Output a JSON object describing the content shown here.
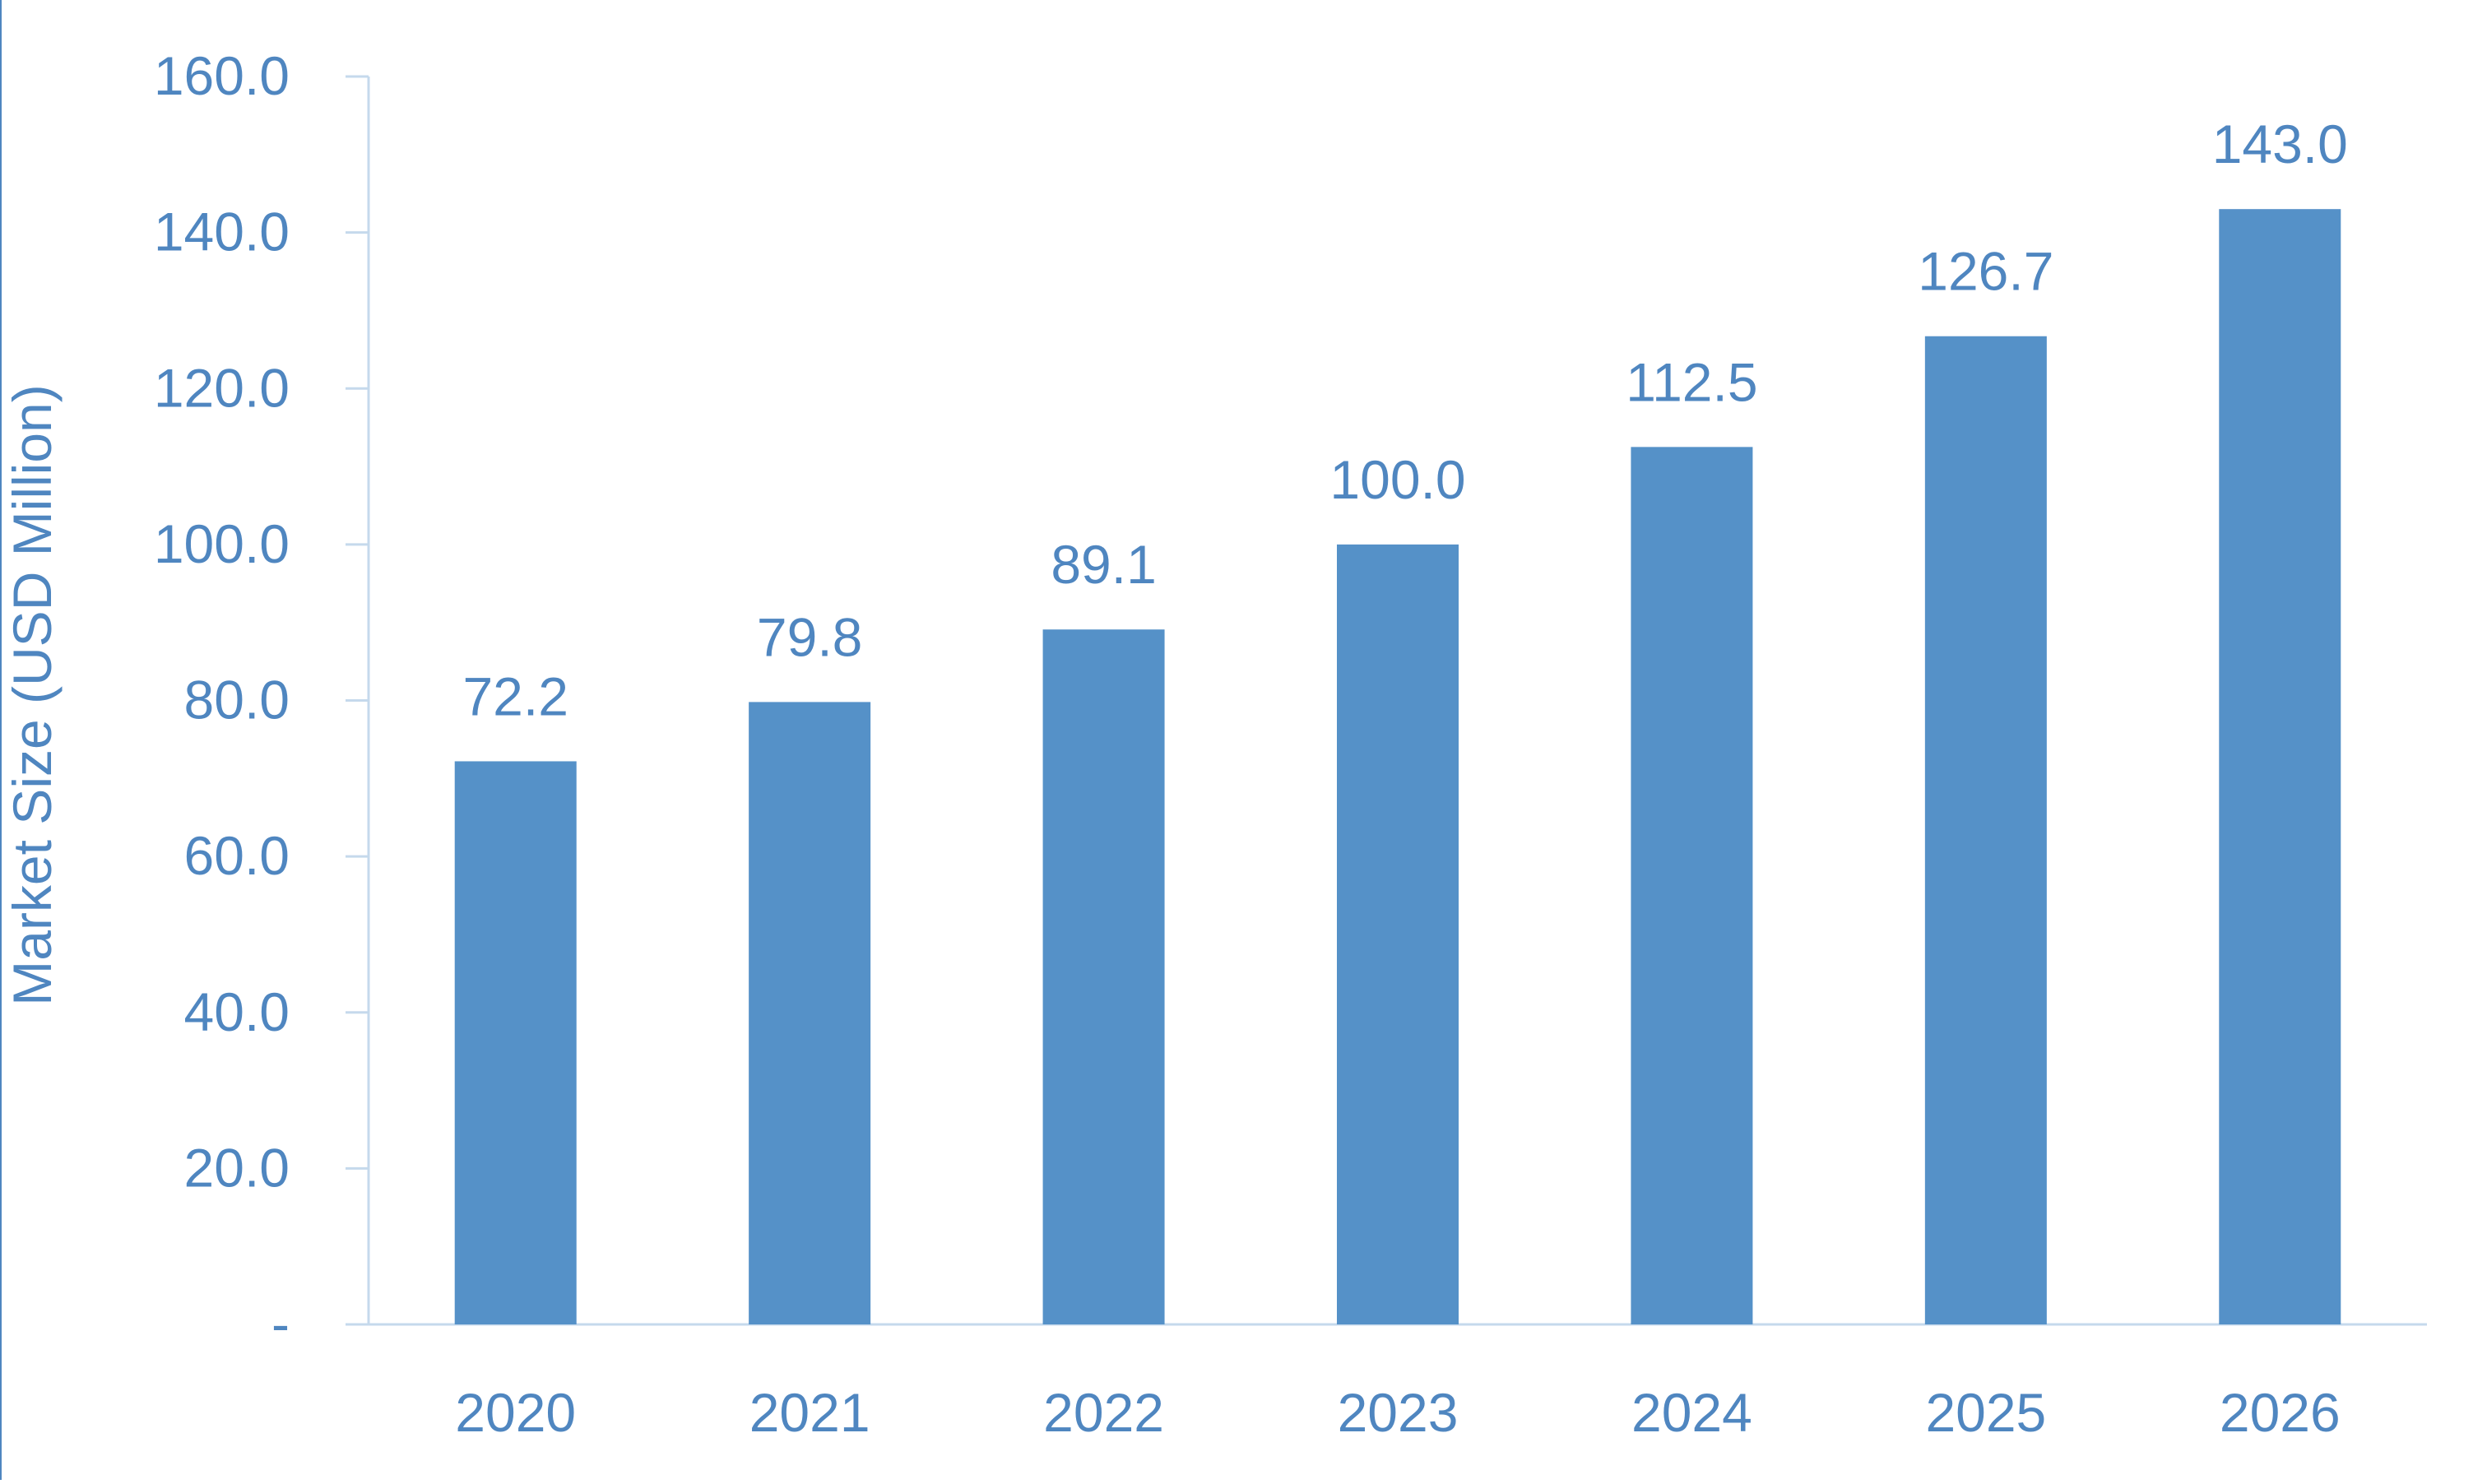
{
  "colors": {
    "bar": "#5591c8",
    "text": "#4f86c0",
    "axis": "#c5d9ec",
    "border": "#4f86c0"
  },
  "chart_data": {
    "type": "bar",
    "categories": [
      "2020",
      "2021",
      "2022",
      "2023",
      "2024",
      "2025",
      "2026"
    ],
    "values": [
      72.2,
      79.8,
      89.1,
      100.0,
      112.5,
      126.7,
      143.0
    ],
    "value_labels": [
      "72.2",
      "79.8",
      "89.1",
      "100.0",
      "112.5",
      "126.7",
      "143.0"
    ],
    "title": "",
    "xlabel": "",
    "ylabel": "Market Size (USD Million)",
    "ylim": [
      0,
      160
    ],
    "y_ticks": [
      0,
      20,
      40,
      60,
      80,
      100,
      120,
      140,
      160
    ],
    "y_tick_labels": [
      "-",
      "20.0",
      "40.0",
      "60.0",
      "80.0",
      "100.0",
      "120.0",
      "140.0",
      "160.0"
    ],
    "grid": false,
    "legend": "none"
  }
}
